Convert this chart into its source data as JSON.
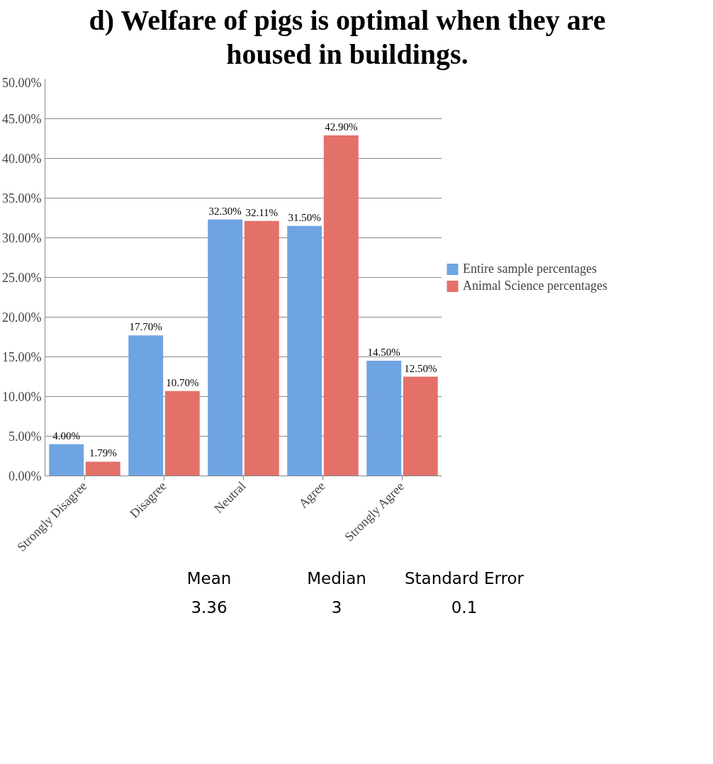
{
  "chart_data": {
    "type": "bar",
    "title": "d) Welfare of pigs is optimal when they are housed in buildings.",
    "categories": [
      "Strongly Disagree",
      "Disagree",
      "Neutral",
      "Agree",
      "Strongly Agree"
    ],
    "series": [
      {
        "name": "Entire sample percentages",
        "color": "#6fa4e3",
        "values": [
          4.0,
          17.7,
          32.3,
          31.5,
          14.5
        ],
        "value_labels": [
          "4.00%",
          "17.70%",
          "32.30%",
          "31.50%",
          "14.50%"
        ]
      },
      {
        "name": "Animal Science percentages",
        "color": "#e4706a",
        "values": [
          1.79,
          10.7,
          32.11,
          42.9,
          12.5
        ],
        "value_labels": [
          "1.79%",
          "10.70%",
          "32.11%",
          "42.90%",
          "12.50%"
        ]
      }
    ],
    "ylim": [
      0,
      50
    ],
    "yticks": [
      {
        "value": 0,
        "label": "0.00%"
      },
      {
        "value": 5,
        "label": "5.00%"
      },
      {
        "value": 10,
        "label": "10.00%"
      },
      {
        "value": 15,
        "label": "15.00%"
      },
      {
        "value": 20,
        "label": "20.00%"
      },
      {
        "value": 25,
        "label": "25.00%"
      },
      {
        "value": 30,
        "label": "30.00%"
      },
      {
        "value": 35,
        "label": "35.00%"
      },
      {
        "value": 40,
        "label": "40.00%"
      },
      {
        "value": 45,
        "label": "45.00%"
      },
      {
        "value": 50,
        "label": "50.00%"
      }
    ],
    "grid": "y",
    "legend": "right",
    "annotations": [
      "Mean",
      "Median",
      "Standard Error",
      "3.36",
      "3",
      "0.1"
    ]
  }
}
